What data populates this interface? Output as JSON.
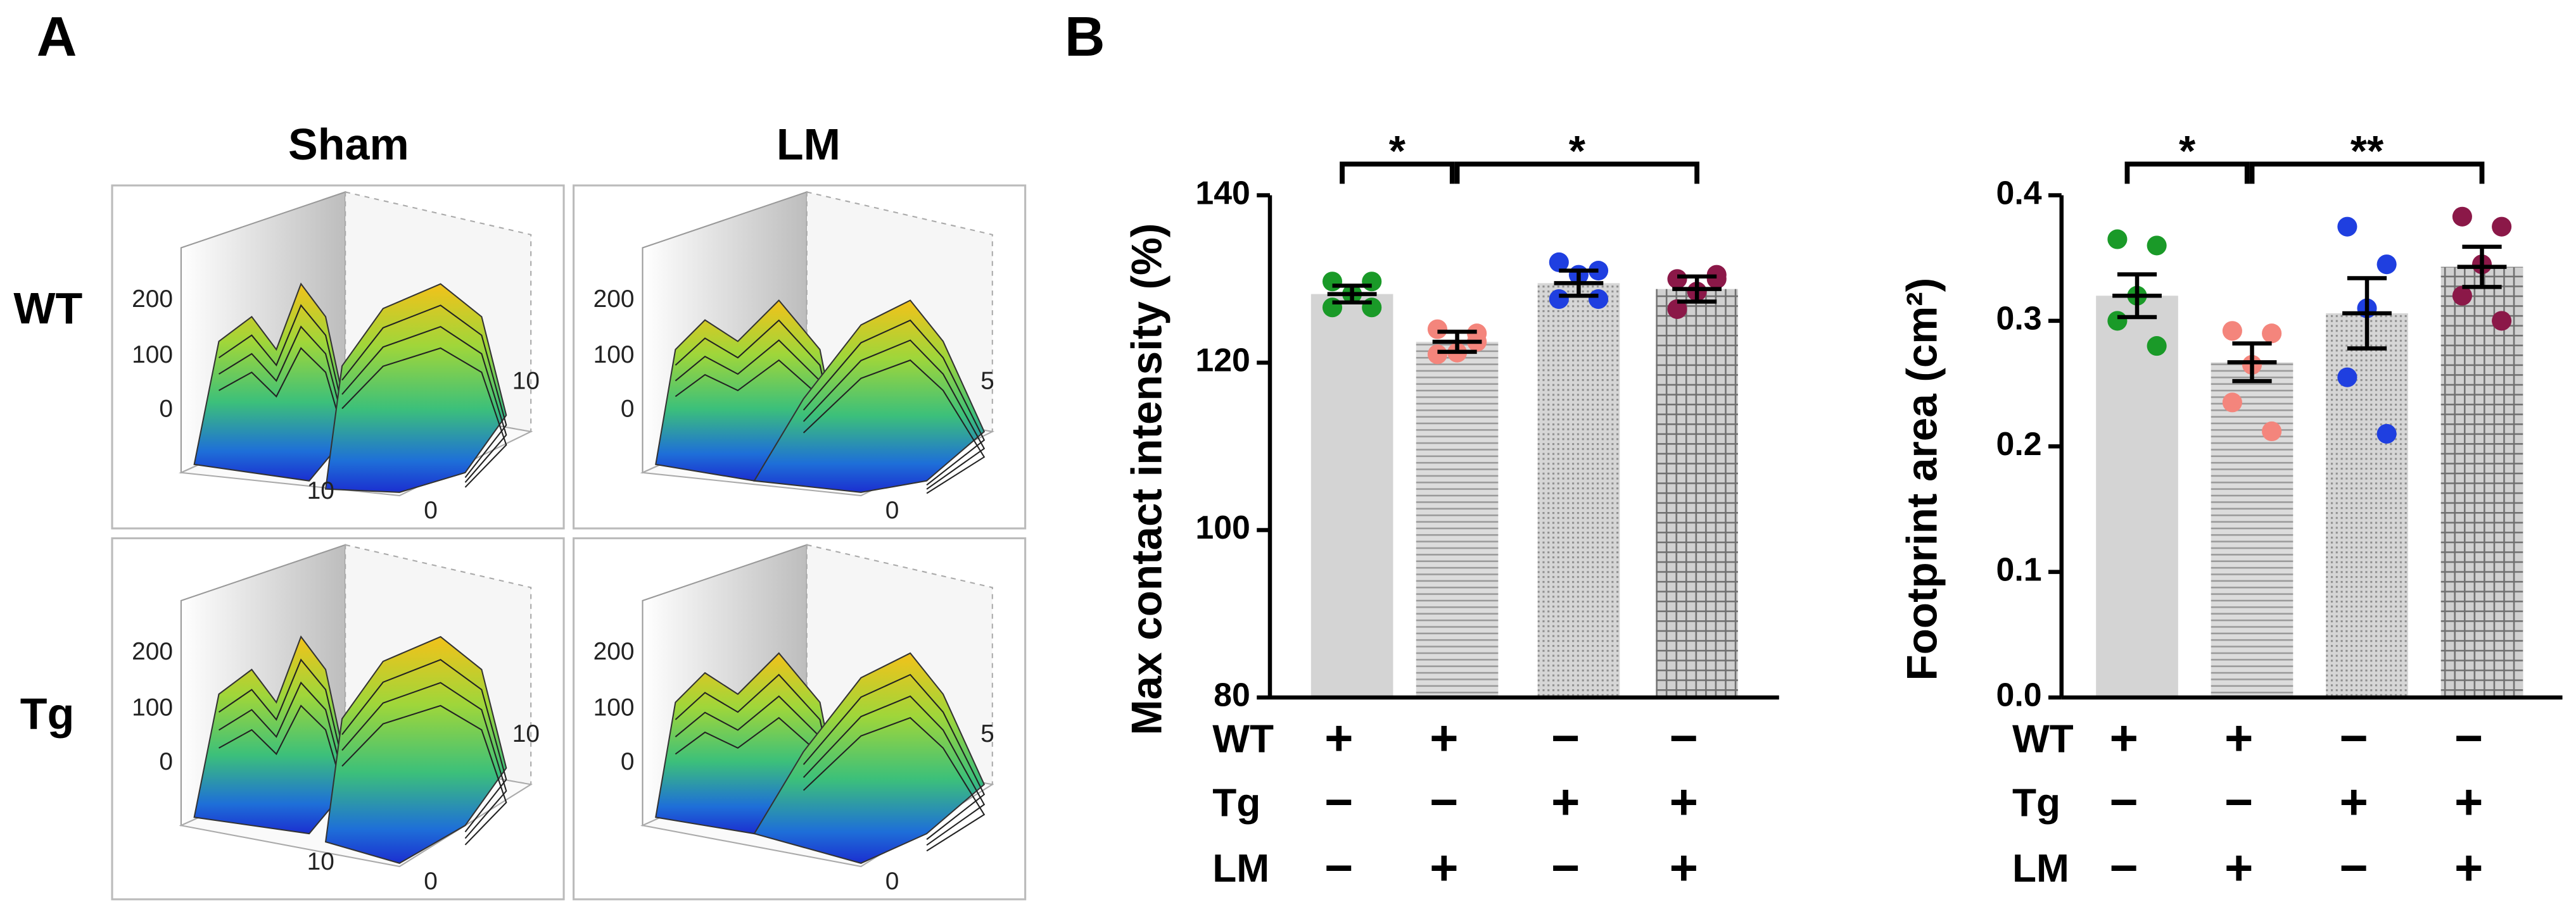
{
  "panel_a": {
    "label": "A",
    "columns": [
      "Sham",
      "LM"
    ],
    "rows": [
      "WT",
      "Tg"
    ],
    "plots": [
      {
        "z_ticks": [
          200,
          100,
          0
        ],
        "x_ticks": [
          10
        ],
        "y_ticks": [
          10,
          0
        ]
      },
      {
        "z_ticks": [
          200,
          100,
          0
        ],
        "y_ticks": [
          5,
          0
        ]
      },
      {
        "z_ticks": [
          200,
          100,
          0
        ],
        "x_ticks": [
          10
        ],
        "y_ticks": [
          10,
          0
        ]
      },
      {
        "z_ticks": [
          200,
          100,
          0
        ],
        "y_ticks": [
          5,
          0
        ]
      }
    ]
  },
  "panel_b_label": "B",
  "chart_data": [
    {
      "type": "bar",
      "ylabel": "Max contact intensity (%)",
      "ylim": [
        80,
        140
      ],
      "yticks": [
        80,
        100,
        120,
        140
      ],
      "color": "#d4d4d4",
      "fill_styles": [
        "solid",
        "hlines",
        "dots",
        "grid"
      ],
      "values": [
        128.2,
        122.5,
        129.5,
        128.8
      ],
      "errors": [
        1.0,
        1.2,
        1.5,
        1.5
      ],
      "point_colors": [
        "#1a9a28",
        "#f4857c",
        "#1f3fe0",
        "#8b1848"
      ],
      "points": [
        [
          129.7,
          129.7,
          128.2,
          126.6,
          126.6
        ],
        [
          124.0,
          122.5,
          121.2,
          121.0,
          123.5
        ],
        [
          132.0,
          131.0,
          130.5,
          127.6,
          127.6
        ],
        [
          130.0,
          130.0,
          128.5,
          126.4,
          130.5
        ]
      ],
      "significance": [
        {
          "pair": [
            0,
            1
          ],
          "label": "*"
        },
        {
          "pair": [
            1,
            3
          ],
          "label": "*"
        }
      ],
      "conditions": [
        {
          "name": "WT",
          "signs": [
            "+",
            "+",
            "−",
            "−"
          ]
        },
        {
          "name": "Tg",
          "signs": [
            "−",
            "−",
            "+",
            "+"
          ]
        },
        {
          "name": "LM",
          "signs": [
            "−",
            "+",
            "−",
            "+"
          ]
        }
      ]
    },
    {
      "type": "bar",
      "ylabel": "Footprint area (cm²)",
      "ylim": [
        0,
        0.4
      ],
      "yticks": [
        {
          "value": 0,
          "label": "0.0"
        },
        0.1,
        0.2,
        0.3,
        0.4
      ],
      "color": "#d4d4d4",
      "fill_styles": [
        "solid",
        "hlines",
        "dots",
        "grid"
      ],
      "values": [
        0.32,
        0.267,
        0.306,
        0.343
      ],
      "errors": [
        0.017,
        0.015,
        0.028,
        0.016
      ],
      "point_colors": [
        "#1a9a28",
        "#f4857c",
        "#1f3fe0",
        "#8b1848"
      ],
      "points": [
        [
          0.365,
          0.36,
          0.32,
          0.3,
          0.28
        ],
        [
          0.292,
          0.29,
          0.265,
          0.235,
          0.212
        ],
        [
          0.375,
          0.345,
          0.31,
          0.255,
          0.21
        ],
        [
          0.383,
          0.375,
          0.345,
          0.32,
          0.3
        ]
      ],
      "significance": [
        {
          "pair": [
            0,
            1
          ],
          "label": "*"
        },
        {
          "pair": [
            1,
            3
          ],
          "label": "**"
        }
      ],
      "conditions": [
        {
          "name": "WT",
          "signs": [
            "+",
            "+",
            "−",
            "−"
          ]
        },
        {
          "name": "Tg",
          "signs": [
            "−",
            "−",
            "+",
            "+"
          ]
        },
        {
          "name": "LM",
          "signs": [
            "−",
            "+",
            "−",
            "+"
          ]
        }
      ]
    }
  ]
}
